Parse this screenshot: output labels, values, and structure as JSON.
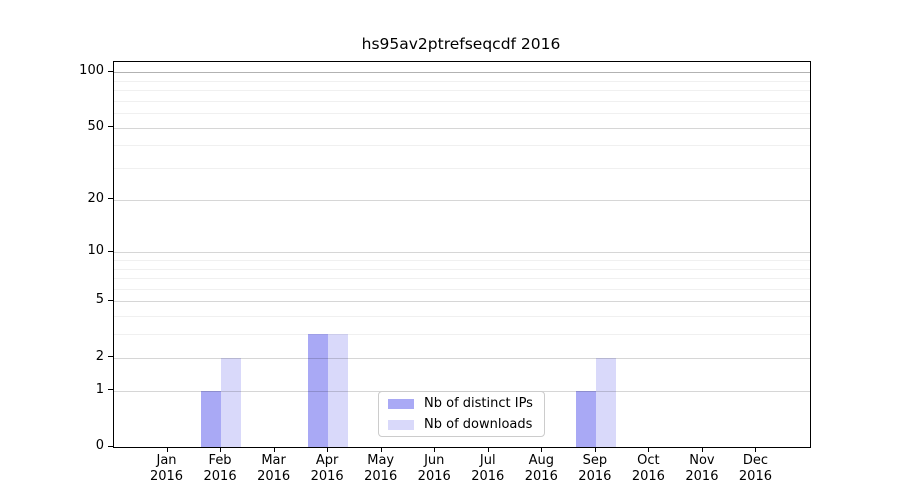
{
  "chart_data": {
    "type": "bar",
    "title": "hs95av2ptrefseqcdf 2016",
    "months": [
      "Jan",
      "Feb",
      "Mar",
      "Apr",
      "May",
      "Jun",
      "Jul",
      "Aug",
      "Sep",
      "Oct",
      "Nov",
      "Dec"
    ],
    "year": "2016",
    "series": [
      {
        "name": "Nb of distinct IPs",
        "color": "#a9a9f5",
        "values": [
          0,
          1,
          0,
          3,
          0,
          0,
          0,
          0,
          1,
          0,
          0,
          0
        ]
      },
      {
        "name": "Nb of downloads",
        "color": "#d9d9fa",
        "values": [
          0,
          2,
          0,
          3,
          0,
          0,
          0,
          0,
          2,
          0,
          0,
          0
        ]
      }
    ],
    "y_axis": {
      "scale": "log1p",
      "major_ticks": [
        0,
        1,
        2,
        5,
        10,
        20,
        50,
        100
      ],
      "minor_ticks": [
        3,
        4,
        6,
        7,
        8,
        9,
        30,
        40,
        60,
        70,
        80,
        90
      ],
      "ylim": [
        0,
        113.5
      ]
    },
    "xlabel": "",
    "ylabel": "",
    "grid": "horizontal major+minor, drawn above bars",
    "legend_position": "lower center"
  },
  "colors": {
    "background": "#ffffff",
    "spine": "#000000",
    "grid_major": "rgba(0,0,0,0.16)",
    "grid_major_top": "rgba(0,0,0,0.30)",
    "grid_minor": "rgba(0,0,0,0.06)",
    "legend_border": "#cccccc",
    "text": "#000000"
  }
}
